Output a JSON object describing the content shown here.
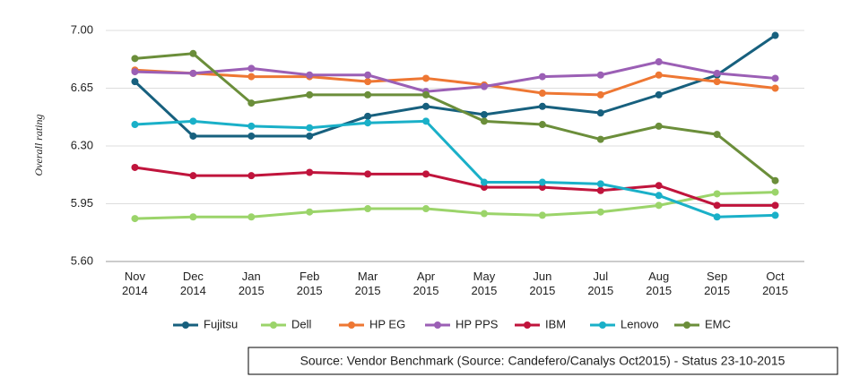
{
  "chart_data": {
    "type": "line",
    "y_label": "Overall rating",
    "categories": [
      "Nov 2014",
      "Dec 2014",
      "Jan 2015",
      "Feb 2015",
      "Mar 2015",
      "Apr 2015",
      "May 2015",
      "Jun 2015",
      "Jul 2015",
      "Aug 2015",
      "Sep 2015",
      "Oct 2015"
    ],
    "series": [
      {
        "name": "Fujitsu",
        "color": "#17607e",
        "values": [
          6.69,
          6.36,
          6.36,
          6.36,
          6.48,
          6.54,
          6.49,
          6.54,
          6.5,
          6.61,
          6.73,
          6.97
        ]
      },
      {
        "name": "Dell",
        "color": "#9bd46a",
        "values": [
          5.86,
          5.87,
          5.87,
          5.9,
          5.92,
          5.92,
          5.89,
          5.88,
          5.9,
          5.94,
          6.01,
          6.02
        ]
      },
      {
        "name": "HP EG",
        "color": "#ee7733",
        "values": [
          6.76,
          6.74,
          6.72,
          6.72,
          6.69,
          6.71,
          6.67,
          6.62,
          6.61,
          6.73,
          6.69,
          6.65
        ]
      },
      {
        "name": "HP PPS",
        "color": "#9b5fb5",
        "values": [
          6.75,
          6.74,
          6.77,
          6.73,
          6.73,
          6.63,
          6.66,
          6.72,
          6.73,
          6.81,
          6.74,
          6.71
        ]
      },
      {
        "name": "IBM",
        "color": "#c0143c",
        "values": [
          6.17,
          6.12,
          6.12,
          6.14,
          6.13,
          6.13,
          6.05,
          6.05,
          6.03,
          6.06,
          5.94,
          5.94
        ]
      },
      {
        "name": "Lenovo",
        "color": "#1ab0c8",
        "values": [
          6.43,
          6.45,
          6.42,
          6.41,
          6.44,
          6.45,
          6.08,
          6.08,
          6.07,
          6.0,
          5.87,
          5.88
        ]
      },
      {
        "name": "EMC",
        "color": "#6b8e3a",
        "values": [
          6.83,
          6.86,
          6.56,
          6.61,
          6.61,
          6.61,
          6.45,
          6.43,
          6.34,
          6.42,
          6.37,
          6.09
        ]
      }
    ],
    "ylim": [
      5.6,
      7.0
    ],
    "yticks": [
      {
        "value": 5.6,
        "label": "5.60"
      },
      {
        "value": 5.95,
        "label": "5.95"
      },
      {
        "value": 6.3,
        "label": "6.30"
      },
      {
        "value": 6.65,
        "label": "6.65"
      },
      {
        "value": 7,
        "label": "7.00"
      }
    ],
    "grid": true,
    "legend": "bottom",
    "source": "Source: Vendor Benchmark (Source: Candefero/Canalys Oct2015) -  Status 23-10-2015"
  }
}
